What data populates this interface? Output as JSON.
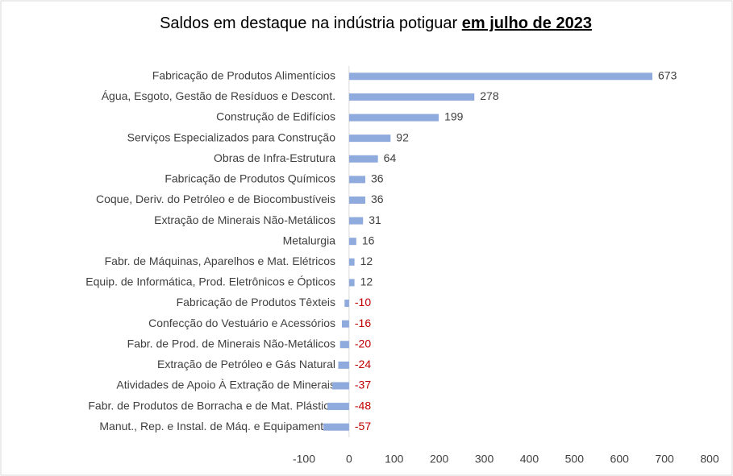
{
  "chart_data": {
    "type": "barh",
    "title": "Saldos em destaque na indústria potiguar",
    "title_emphasis": "em julho de 2023",
    "categories": [
      "Fabricação de Produtos Alimentícios",
      "Água, Esgoto, Gestão de Resíduos e Descont.",
      "Construção de Edifícios",
      "Serviços Especializados para Construção",
      "Obras de Infra-Estrutura",
      "Fabricação de Produtos Químicos",
      "Coque, Deriv. do Petróleo e de Biocombustíveis",
      "Extração de Minerais Não-Metálicos",
      "Metalurgia",
      "Fabr. de Máquinas, Aparelhos e Mat. Elétricos",
      "Equip. de Informática, Prod. Eletrônicos e Ópticos",
      "Fabricação de Produtos Têxteis",
      "Confecção do Vestuário e Acessórios",
      "Fabr. de Prod. de Minerais Não-Metálicos",
      "Extração de Petróleo e Gás Natural",
      "Atividades de Apoio À Extração de Minerais",
      "Fabr. de Produtos de Borracha e de Mat. Plástico",
      "Manut., Rep. e Instal. de Máq. e Equipamentos"
    ],
    "values": [
      673,
      278,
      199,
      92,
      64,
      36,
      36,
      31,
      16,
      12,
      12,
      -10,
      -16,
      -20,
      -24,
      -37,
      -48,
      -57
    ],
    "color": "#8faadc",
    "label_color": "#404040",
    "negative_label_color": "#c00000",
    "xlim": [
      -100,
      800
    ],
    "xticks": [
      -100,
      0,
      100,
      200,
      300,
      400,
      500,
      600,
      700,
      800
    ],
    "grid": false
  }
}
